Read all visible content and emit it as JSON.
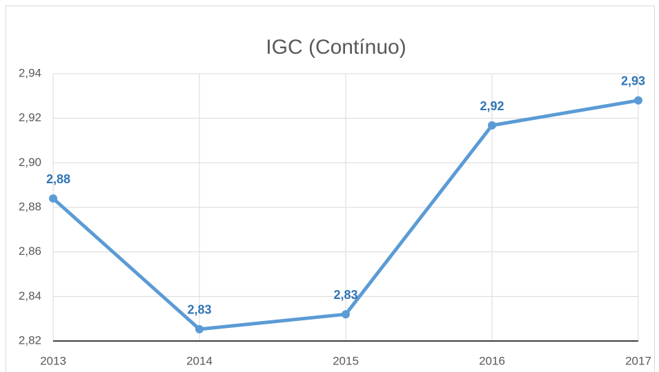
{
  "chart_data": {
    "type": "line",
    "title": "IGC (Contínuo)",
    "categories": [
      "2013",
      "2014",
      "2015",
      "2016",
      "2017"
    ],
    "values": [
      2.884,
      2.8253,
      2.832,
      2.9168,
      2.928
    ],
    "value_labels": [
      "2,88",
      "2,83",
      "2,83",
      "2,92",
      "2,93"
    ],
    "color": "#5b9bd5",
    "ylim": [
      2.82,
      2.94
    ],
    "yticks": [
      {
        "value": 2.82,
        "label": "2,82"
      },
      {
        "value": 2.84,
        "label": "2,84"
      },
      {
        "value": 2.86,
        "label": "2,86"
      },
      {
        "value": 2.88,
        "label": "2,88"
      },
      {
        "value": 2.9,
        "label": "2,90"
      },
      {
        "value": 2.92,
        "label": "2,92"
      },
      {
        "value": 2.94,
        "label": "2,94"
      }
    ],
    "grid": true
  }
}
